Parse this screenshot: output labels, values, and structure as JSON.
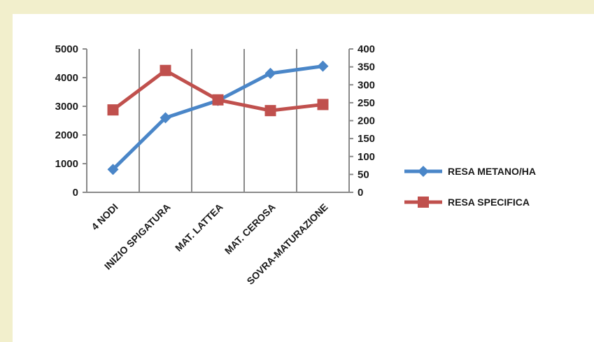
{
  "chart_data": {
    "type": "line",
    "categories": [
      "4 NODI",
      "INIZIO SPIGATURA",
      "MAT. LATTEA",
      "MAT. CEROSA",
      "SOVRA-MATURAZIONE"
    ],
    "series": [
      {
        "name": "RESA METANO/HA",
        "axis": "left",
        "color": "#4a86c8",
        "marker": "diamond",
        "values": [
          800,
          2600,
          3200,
          4150,
          4400
        ]
      },
      {
        "name": "RESA SPECIFICA",
        "axis": "right",
        "color": "#c0504d",
        "marker": "square",
        "values": [
          230,
          340,
          258,
          228,
          245
        ]
      }
    ],
    "y_left": {
      "min": 0,
      "max": 5000,
      "ticks": [
        "0",
        "1000",
        "2000",
        "3000",
        "4000",
        "5000"
      ]
    },
    "y_right": {
      "min": 0,
      "max": 400,
      "ticks": [
        "0",
        "50",
        "100",
        "150",
        "200",
        "250",
        "300",
        "350",
        "400"
      ]
    },
    "grid": "vertical",
    "legend_position": "right"
  }
}
